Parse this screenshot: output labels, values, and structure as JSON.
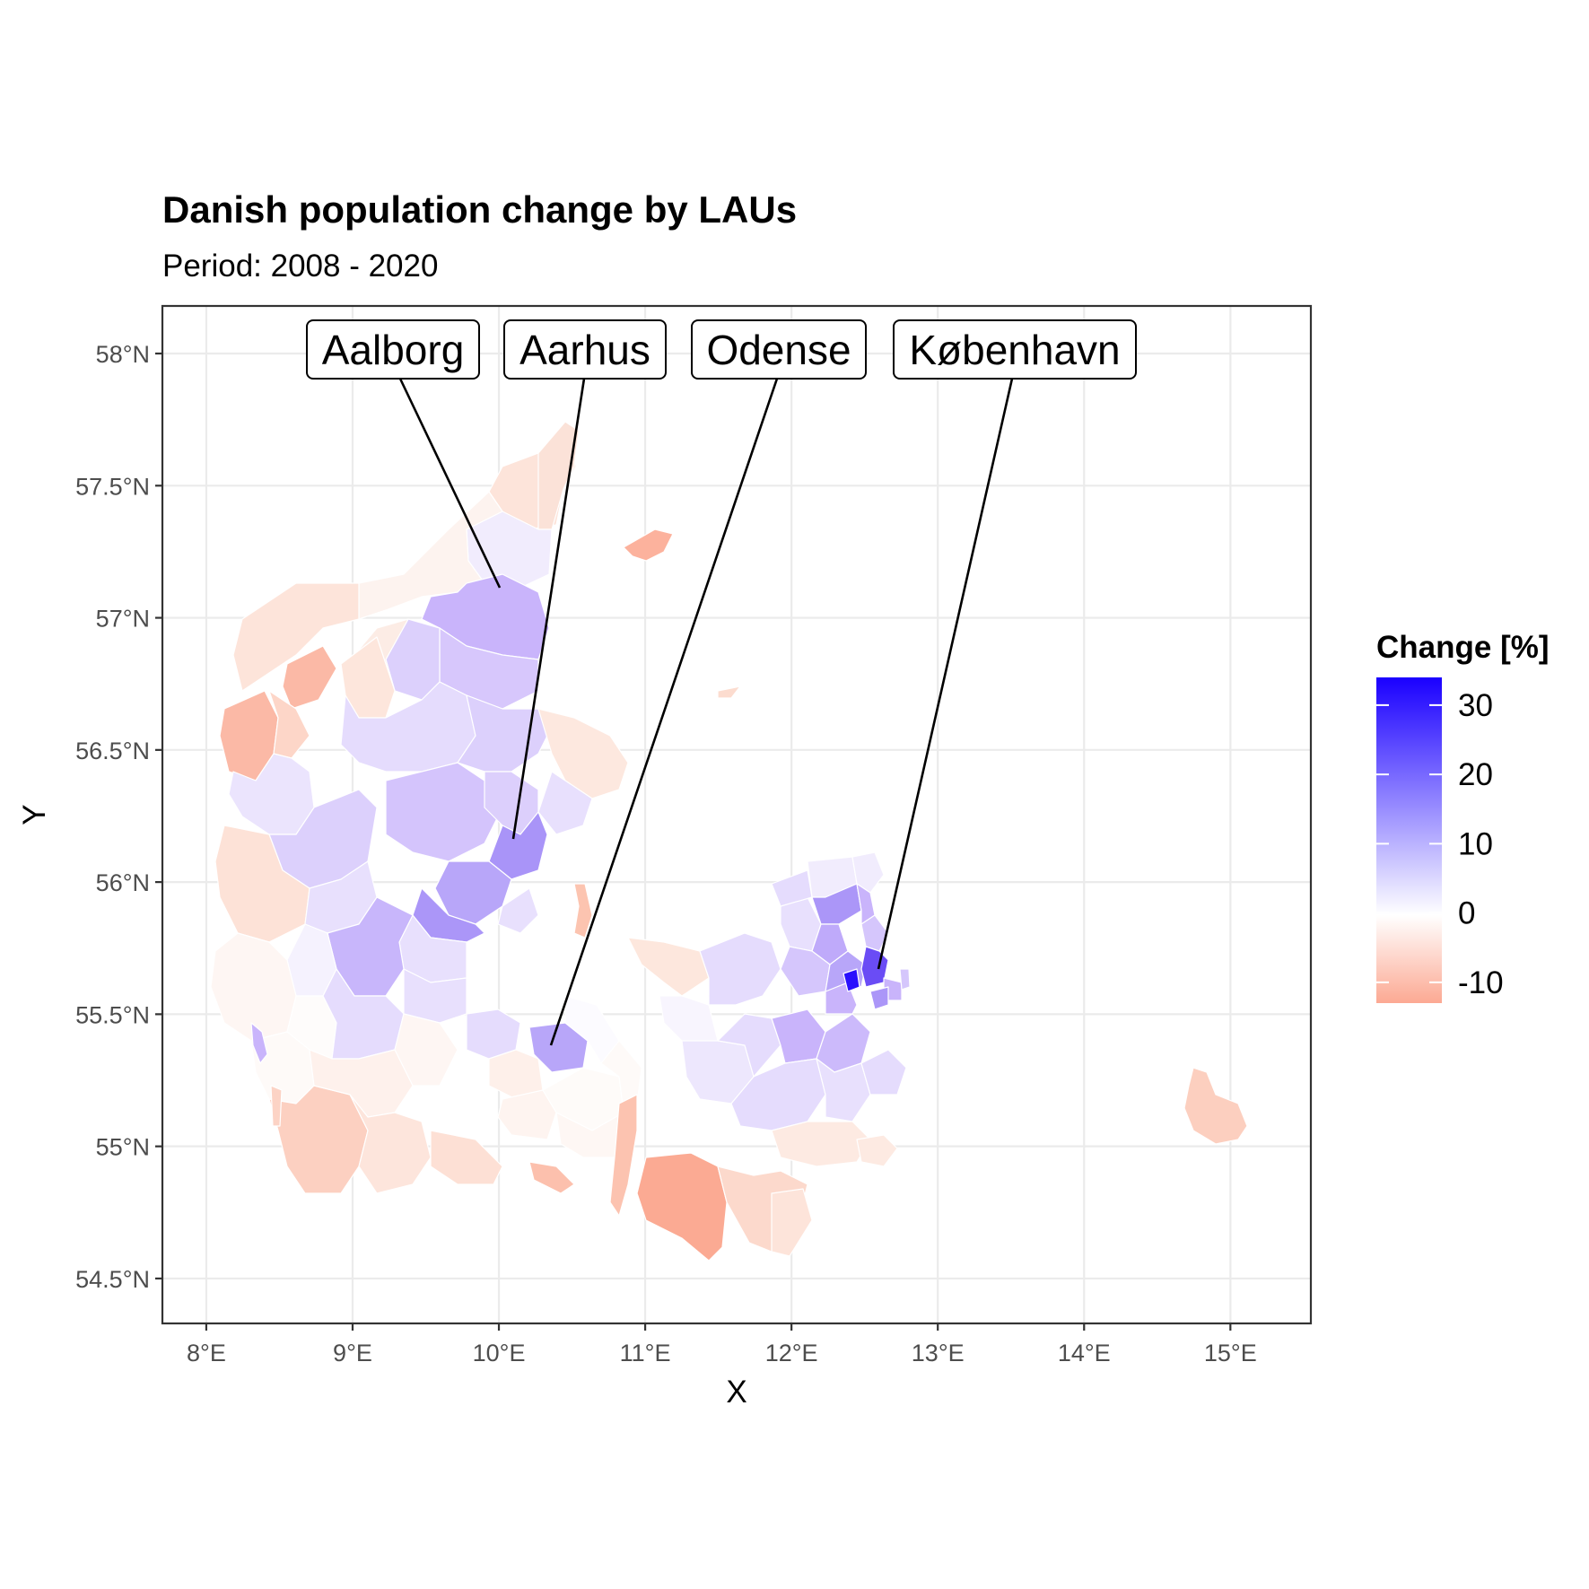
{
  "title": "Danish population change by LAUs",
  "subtitle": "Period: 2008 - 2020",
  "axes": {
    "xlabel": "X",
    "ylabel": "Y",
    "x_ticks": [
      "8°E",
      "9°E",
      "10°E",
      "11°E",
      "12°E",
      "13°E",
      "14°E",
      "15°E"
    ],
    "y_ticks": [
      "54.5°N",
      "55°N",
      "55.5°N",
      "56°N",
      "56.5°N",
      "57°N",
      "57.5°N",
      "58°N"
    ]
  },
  "legend": {
    "title": "Change [%]",
    "labels": [
      "30",
      "20",
      "10",
      "0",
      "-10"
    ],
    "placement": "right"
  },
  "callouts": [
    {
      "label": "Aalborg"
    },
    {
      "label": "Aarhus"
    },
    {
      "label": "Odense"
    },
    {
      "label": "København"
    }
  ],
  "colors": {
    "high": "#1a00ff",
    "mid": "#ffffff",
    "low": "#fca993"
  },
  "chart_data": {
    "type": "choropleth",
    "x_ticks_deg": [
      8,
      9,
      10,
      11,
      12,
      13,
      14,
      15
    ],
    "y_ticks_deg": [
      54.5,
      55,
      55.5,
      56,
      56.5,
      57,
      57.5,
      58
    ],
    "xlim": [
      7.7,
      15.55
    ],
    "ylim": [
      54.33,
      58.18
    ],
    "grid": true,
    "color_scale": {
      "min": -13,
      "max": 34,
      "midpoint": 0
    },
    "cities": [
      {
        "name": "Aalborg",
        "lon": 9.92,
        "lat": 57.05,
        "change": 12
      },
      {
        "name": "Aarhus",
        "lon": 10.2,
        "lat": 56.16,
        "change": 18
      },
      {
        "name": "Odense",
        "lon": 10.39,
        "lat": 55.4,
        "change": 11
      },
      {
        "name": "København",
        "lon": 12.57,
        "lat": 55.68,
        "change": 22
      }
    ]
  }
}
